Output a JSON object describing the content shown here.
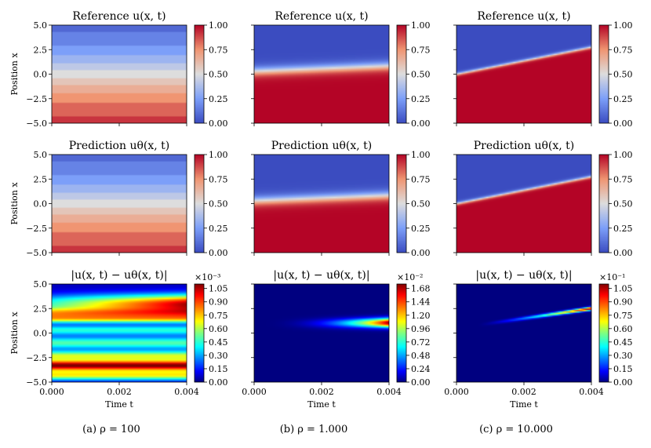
{
  "figure": {
    "x_label": "Time t",
    "y_label": "Position x",
    "xlim": [
      0.0,
      0.004
    ],
    "ylim": [
      -5.0,
      5.0
    ],
    "x_ticks": [
      "0.000",
      "0.002",
      "0.004"
    ],
    "y_ticks": [
      "5.0",
      "2.5",
      "0.0",
      "−2.5",
      "−5.0"
    ],
    "colormap_solution": "coolwarm",
    "colormap_error": "jet"
  },
  "chart_data": [
    {
      "column": 0,
      "caption": "(a) ρ = 100",
      "rho": 100,
      "panels": [
        {
          "type": "heatmap",
          "row": "reference",
          "title": "Reference u(x, t)",
          "field": {
            "kind": "front",
            "x0": 0.0,
            "slope": 0,
            "width": 2.2,
            "banded": true
          },
          "colorbar": {
            "ticks": [
              "1.00",
              "0.75",
              "0.50",
              "0.25",
              "0.00"
            ],
            "range": [
              0,
              1
            ]
          }
        },
        {
          "type": "heatmap",
          "row": "prediction",
          "title": "Prediction uθ(x, t)",
          "field": {
            "kind": "front",
            "x0": 0.0,
            "slope": 0,
            "width": 2.2,
            "banded": true
          },
          "colorbar": {
            "ticks": [
              "1.00",
              "0.75",
              "0.50",
              "0.25",
              "0.00"
            ],
            "range": [
              0,
              1
            ]
          }
        },
        {
          "type": "heatmap",
          "row": "error",
          "title": "|u(x, t) − uθ(x, t)|",
          "field": {
            "kind": "stripes"
          },
          "colorbar": {
            "ticks": [
              "1.05",
              "0.90",
              "0.75",
              "0.60",
              "0.45",
              "0.30",
              "0.15",
              "0.00"
            ],
            "range": [
              0,
              1.1
            ],
            "exponent": "×10⁻³"
          }
        }
      ]
    },
    {
      "column": 1,
      "caption": "(b) ρ = 1.000",
      "rho": 1000,
      "panels": [
        {
          "type": "heatmap",
          "row": "reference",
          "title": "Reference u(x, t)",
          "field": {
            "kind": "front",
            "x0": 0.3,
            "slope": 0.55,
            "width": 0.28,
            "banded": false
          },
          "colorbar": {
            "ticks": [
              "1.00",
              "0.75",
              "0.50",
              "0.25",
              "0.00"
            ],
            "range": [
              0,
              1
            ]
          }
        },
        {
          "type": "heatmap",
          "row": "prediction",
          "title": "Prediction uθ(x, t)",
          "field": {
            "kind": "front",
            "x0": 0.3,
            "slope": 0.55,
            "width": 0.28,
            "banded": false
          },
          "colorbar": {
            "ticks": [
              "1.00",
              "0.75",
              "0.50",
              "0.25",
              "0.00"
            ],
            "range": [
              0,
              1
            ]
          }
        },
        {
          "type": "heatmap",
          "row": "error",
          "title": "|u(x, t) − uθ(x, t)|",
          "field": {
            "kind": "blob"
          },
          "colorbar": {
            "ticks": [
              "1.68",
              "1.44",
              "1.20",
              "0.96",
              "0.72",
              "0.48",
              "0.24",
              "0.00"
            ],
            "range": [
              0,
              1.76
            ],
            "exponent": "×10⁻²"
          }
        }
      ]
    },
    {
      "column": 2,
      "caption": "(c) ρ = 10.000",
      "rho": 10000,
      "panels": [
        {
          "type": "heatmap",
          "row": "reference",
          "title": "Reference u(x, t)",
          "field": {
            "kind": "front",
            "x0": 0.0,
            "slope": 2.75,
            "width": 0.09,
            "banded": false
          },
          "colorbar": {
            "ticks": [
              "1.00",
              "0.75",
              "0.50",
              "0.25",
              "0.00"
            ],
            "range": [
              0,
              1
            ]
          }
        },
        {
          "type": "heatmap",
          "row": "prediction",
          "title": "Prediction uθ(x, t)",
          "field": {
            "kind": "front",
            "x0": 0.0,
            "slope": 2.75,
            "width": 0.09,
            "banded": false
          },
          "colorbar": {
            "ticks": [
              "1.00",
              "0.75",
              "0.50",
              "0.25",
              "0.00"
            ],
            "range": [
              0,
              1
            ]
          }
        },
        {
          "type": "heatmap",
          "row": "error",
          "title": "|u(x, t) − uθ(x, t)|",
          "field": {
            "kind": "streak"
          },
          "colorbar": {
            "ticks": [
              "1.05",
              "0.90",
              "0.75",
              "0.60",
              "0.45",
              "0.30",
              "0.15",
              "0.00"
            ],
            "range": [
              0,
              1.1
            ],
            "exponent": "×10⁻¹"
          }
        }
      ]
    }
  ]
}
